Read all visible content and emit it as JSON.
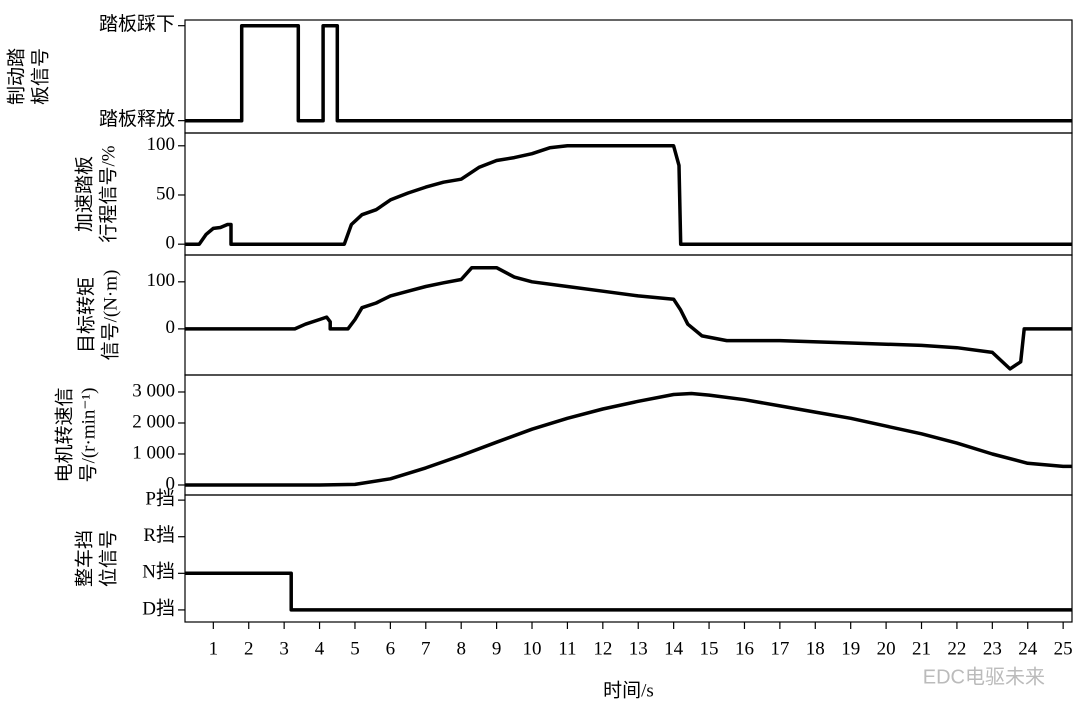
{
  "chart_data": [
    {
      "type": "line",
      "ylabel": [
        "制动踏",
        "板信号"
      ],
      "xlim": [
        0.2,
        25.25
      ],
      "ylim": [
        -0.13,
        1.06
      ],
      "yticks": [
        {
          "value": 0,
          "label": "踏板释放"
        },
        {
          "value": 1,
          "label": "踏板踩下"
        }
      ],
      "x": [
        0.2,
        1.8,
        1.8,
        3.4,
        3.4,
        4.1,
        4.1,
        4.5,
        4.5,
        25.25
      ],
      "values": [
        0,
        0,
        1,
        1,
        0,
        0,
        1,
        1,
        0,
        0
      ],
      "color": "#000000"
    },
    {
      "type": "line",
      "ylabel": [
        "加速踏板",
        "行程信号/%"
      ],
      "xlim": [
        0.2,
        25.25
      ],
      "ylim": [
        -11,
        113
      ],
      "yticks": [
        0,
        50,
        100
      ],
      "x": [
        0.2,
        0.6,
        0.8,
        1.0,
        1.2,
        1.4,
        1.5,
        1.5,
        4.7,
        4.9,
        5.2,
        5.6,
        6,
        6.5,
        7,
        7.5,
        8,
        8.5,
        9,
        9.5,
        10,
        10.5,
        11,
        14.0,
        14.15,
        14.2,
        25.25
      ],
      "values": [
        0,
        0,
        10,
        16,
        17,
        20,
        20,
        0,
        0,
        20,
        30,
        35,
        45,
        52,
        58,
        63,
        66,
        78,
        85,
        88,
        92,
        98,
        100,
        100,
        80,
        0,
        0
      ],
      "color": "#000000"
    },
    {
      "type": "line",
      "ylabel": [
        "目标转矩",
        "信号/(N·m)"
      ],
      "xlim": [
        0.2,
        25.25
      ],
      "ylim": [
        -98,
        157
      ],
      "yticks": [
        0,
        100
      ],
      "x": [
        0.2,
        3.3,
        3.6,
        4.0,
        4.2,
        4.3,
        4.3,
        4.8,
        5.0,
        5.2,
        5.6,
        6,
        6.5,
        7,
        7.5,
        8,
        8.3,
        9,
        9.5,
        10,
        11,
        12,
        13,
        14.0,
        14.2,
        14.4,
        14.8,
        15.5,
        17,
        19,
        21,
        22,
        23,
        23.5,
        23.8,
        23.9,
        25.25
      ],
      "values": [
        0,
        0,
        10,
        20,
        25,
        15,
        0,
        0,
        20,
        45,
        55,
        70,
        80,
        90,
        98,
        105,
        130,
        130,
        110,
        100,
        90,
        80,
        70,
        63,
        40,
        10,
        -15,
        -25,
        -25,
        -30,
        -35,
        -40,
        -50,
        -85,
        -70,
        0,
        0
      ],
      "color": "#000000"
    },
    {
      "type": "line",
      "ylabel": [
        "电机转速信",
        "号/(r·min⁻¹)"
      ],
      "xlim": [
        0.2,
        25.25
      ],
      "ylim": [
        -323,
        3548
      ],
      "yticks": [
        0,
        {
          "value": 1000,
          "label": "1 000"
        },
        {
          "value": 2000,
          "label": "2 000"
        },
        {
          "value": 3000,
          "label": "3 000"
        }
      ],
      "x": [
        0.2,
        4,
        5,
        6,
        7,
        8,
        9,
        10,
        11,
        12,
        13,
        14,
        14.5,
        15,
        16,
        17,
        18,
        19,
        20,
        21,
        22,
        23,
        24,
        25,
        25.25
      ],
      "values": [
        0,
        0,
        20,
        200,
        550,
        950,
        1380,
        1800,
        2150,
        2450,
        2700,
        2920,
        2950,
        2900,
        2750,
        2550,
        2350,
        2150,
        1900,
        1650,
        1350,
        1000,
        700,
        600,
        600
      ],
      "color": "#000000"
    },
    {
      "type": "line",
      "ylabel": [
        "整车挡",
        "位信号"
      ],
      "xlim": [
        0.2,
        25.25
      ],
      "ylim": [
        -0.33,
        3.14
      ],
      "yticks": [
        {
          "value": 0,
          "label": "D挡"
        },
        {
          "value": 1,
          "label": "N挡"
        },
        {
          "value": 2,
          "label": "R挡"
        },
        {
          "value": 3,
          "label": "P挡"
        }
      ],
      "x": [
        0.2,
        3.2,
        3.2,
        25.25
      ],
      "values": [
        1,
        1,
        0,
        0
      ],
      "color": "#000000",
      "xticks": [
        1,
        2,
        3,
        4,
        5,
        6,
        7,
        8,
        9,
        10,
        11,
        12,
        13,
        14,
        15,
        16,
        17,
        18,
        19,
        20,
        21,
        22,
        23,
        24,
        25
      ],
      "xlabel": "时间/s",
      "watermark": "EDC电驱未来"
    }
  ]
}
